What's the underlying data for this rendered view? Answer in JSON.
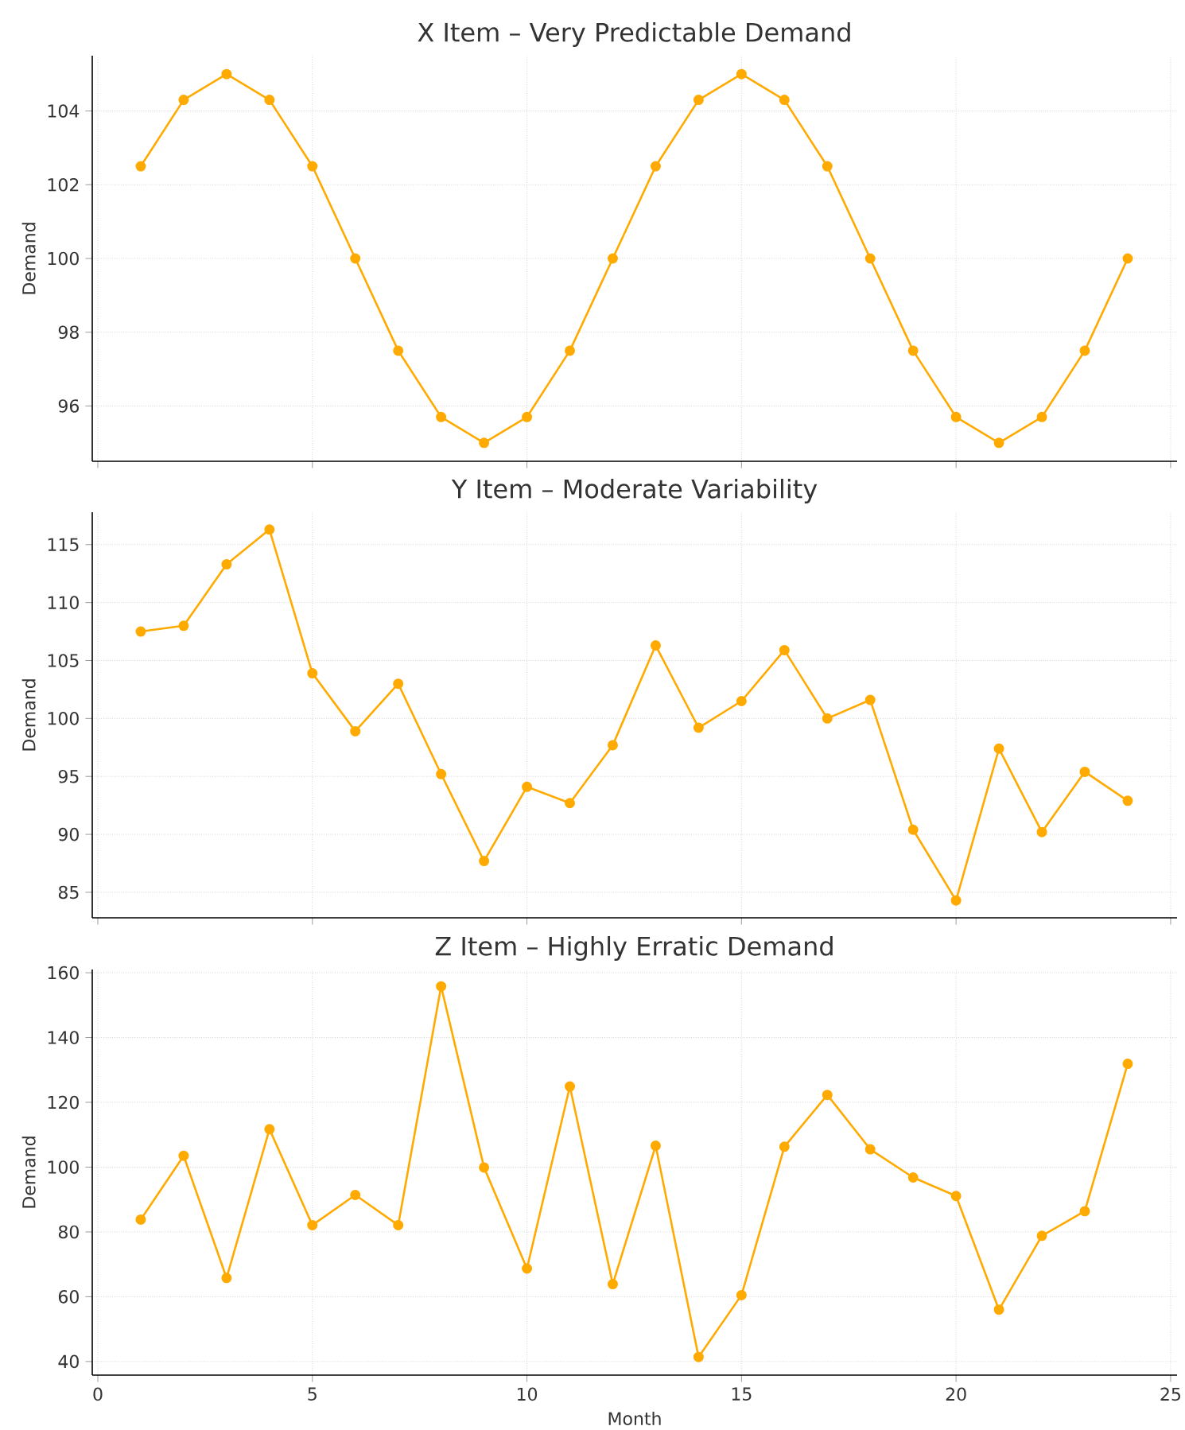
{
  "chart_data": [
    {
      "type": "line",
      "title": "X Item – Very Predictable Demand",
      "ylabel": "Demand",
      "x": [
        1,
        2,
        3,
        4,
        5,
        6,
        7,
        8,
        9,
        10,
        11,
        12,
        13,
        14,
        15,
        16,
        17,
        18,
        19,
        20,
        21,
        22,
        23,
        24
      ],
      "values": [
        102.5,
        104.3,
        105,
        104.3,
        102.5,
        100,
        97.5,
        95.7,
        95,
        95.7,
        97.5,
        100,
        102.5,
        104.3,
        105,
        104.3,
        102.5,
        100,
        97.5,
        95.7,
        95,
        95.7,
        97.5,
        100
      ],
      "color": "#ffaa00",
      "marker": "circle",
      "grid": true,
      "tick_labels": "y",
      "xlim": [
        -0.13,
        25.15
      ],
      "ylim": [
        94.5,
        105.5
      ],
      "xticks": [
        0,
        5,
        10,
        15,
        20,
        25
      ],
      "yticks": [
        96,
        98,
        100,
        102,
        104
      ]
    },
    {
      "type": "line",
      "title": "Y Item – Moderate Variability",
      "ylabel": "Demand",
      "x": [
        1,
        2,
        3,
        4,
        5,
        6,
        7,
        8,
        9,
        10,
        11,
        12,
        13,
        14,
        15,
        16,
        17,
        18,
        19,
        20,
        21,
        22,
        23,
        24
      ],
      "values": [
        107.5,
        108.0,
        113.3,
        116.3,
        103.9,
        98.9,
        103.0,
        95.2,
        87.7,
        94.1,
        92.7,
        97.7,
        106.3,
        99.2,
        101.5,
        105.9,
        100.0,
        101.6,
        90.4,
        84.3,
        97.4,
        90.2,
        95.4,
        92.9
      ],
      "color": "#ffaa00",
      "marker": "circle",
      "grid": true,
      "tick_labels": "y",
      "xlim": [
        -0.13,
        25.15
      ],
      "ylim": [
        82.8,
        117.8
      ],
      "xticks": [
        0,
        5,
        10,
        15,
        20,
        25
      ],
      "yticks": [
        85,
        90,
        95,
        100,
        105,
        110,
        115
      ]
    },
    {
      "type": "line",
      "title": "Z Item – Highly Erratic Demand",
      "ylabel": "Demand",
      "xlabel": "Month",
      "x": [
        1,
        2,
        3,
        4,
        5,
        6,
        7,
        8,
        9,
        10,
        11,
        12,
        13,
        14,
        15,
        16,
        17,
        18,
        19,
        20,
        21,
        22,
        23,
        24
      ],
      "values": [
        83.8,
        103.5,
        65.8,
        111.7,
        82.1,
        91.4,
        82.1,
        155.8,
        99.9,
        68.7,
        124.9,
        63.9,
        106.6,
        41.4,
        60.5,
        106.3,
        122.3,
        105.5,
        96.8,
        91.1,
        56.0,
        78.8,
        86.4,
        131.9
      ],
      "color": "#ffaa00",
      "marker": "circle",
      "grid": true,
      "xlim": [
        -0.13,
        25.15
      ],
      "ylim": [
        35.8,
        161
      ],
      "xticks": [
        0,
        5,
        10,
        15,
        20,
        25
      ],
      "yticks": [
        40,
        60,
        80,
        100,
        120,
        140,
        160
      ]
    }
  ]
}
